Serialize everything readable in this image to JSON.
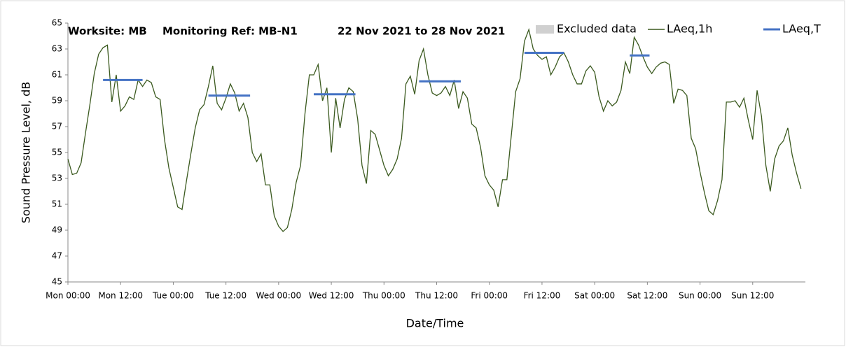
{
  "chart_data": {
    "type": "line",
    "title_parts": [
      "Worksite: MB",
      "Monitoring Ref: MB-N1",
      "22 Nov 2021 to 28 Nov 2021"
    ],
    "xlabel": "Date/Time",
    "ylabel": "Sound Pressure Level, dB",
    "xlim": [
      0,
      168
    ],
    "xticks": [
      {
        "value": 0,
        "label": "Mon 00:00"
      },
      {
        "value": 12,
        "label": "Mon 12:00"
      },
      {
        "value": 24,
        "label": "Tue 00:00"
      },
      {
        "value": 36,
        "label": "Tue 12:00"
      },
      {
        "value": 48,
        "label": "Wed 00:00"
      },
      {
        "value": 60,
        "label": "Wed 12:00"
      },
      {
        "value": 72,
        "label": "Thu 00:00"
      },
      {
        "value": 84,
        "label": "Thu 12:00"
      },
      {
        "value": 96,
        "label": "Fri 00:00"
      },
      {
        "value": 108,
        "label": "Fri 12:00"
      },
      {
        "value": 120,
        "label": "Sat 00:00"
      },
      {
        "value": 132,
        "label": "Sat 12:00"
      },
      {
        "value": 144,
        "label": "Sun 00:00"
      },
      {
        "value": 156,
        "label": "Sun 12:00"
      }
    ],
    "ylim": [
      45,
      65
    ],
    "yticks": [
      45,
      47,
      49,
      51,
      53,
      55,
      57,
      59,
      61,
      63,
      65
    ],
    "grid": false,
    "excluded": {
      "name": "Excluded data",
      "color": "#d0d0d0"
    },
    "x": [
      0,
      1,
      2,
      3,
      4,
      5,
      6,
      7,
      8,
      9,
      10,
      11,
      12,
      13,
      14,
      15,
      16,
      17,
      18,
      19,
      20,
      21,
      22,
      23,
      24,
      25,
      26,
      27,
      28,
      29,
      30,
      31,
      32,
      33,
      34,
      35,
      36,
      37,
      38,
      39,
      40,
      41,
      42,
      43,
      44,
      45,
      46,
      47,
      48,
      49,
      50,
      51,
      52,
      53,
      54,
      55,
      56,
      57,
      58,
      59,
      60,
      61,
      62,
      63,
      64,
      65,
      66,
      67,
      68,
      69,
      70,
      71,
      72,
      73,
      74,
      75,
      76,
      77,
      78,
      79,
      80,
      81,
      82,
      83,
      84,
      85,
      86,
      87,
      88,
      89,
      90,
      91,
      92,
      93,
      94,
      95,
      96,
      97,
      98,
      99,
      100,
      101,
      102,
      103,
      104,
      105,
      106,
      107,
      108,
      109,
      110,
      111,
      112,
      113,
      114,
      115,
      116,
      117,
      118,
      119,
      120,
      121,
      122,
      123,
      124,
      125,
      126,
      127,
      128,
      129,
      130,
      131,
      132,
      133,
      134,
      135,
      136,
      137,
      138,
      139,
      140,
      141,
      142,
      143,
      144,
      145,
      146,
      147,
      148,
      149,
      150,
      151,
      152,
      153,
      154,
      155,
      156,
      157,
      158,
      159,
      160,
      161,
      162,
      163,
      164,
      165,
      166,
      167
    ],
    "series": [
      {
        "name": "LAeq,1h",
        "color": "#3b5a1f",
        "values": [
          54.5,
          53.3,
          53.4,
          54.2,
          56.5,
          58.7,
          61.1,
          62.6,
          63.1,
          63.3,
          58.9,
          61.0,
          58.2,
          58.6,
          59.3,
          59.1,
          60.6,
          60.1,
          60.6,
          60.4,
          59.3,
          59.1,
          56.0,
          53.8,
          52.3,
          50.8,
          50.6,
          52.8,
          54.9,
          56.9,
          58.3,
          58.7,
          60.1,
          61.7,
          58.8,
          58.3,
          59.2,
          60.3,
          59.6,
          58.2,
          58.8,
          57.7,
          55.0,
          54.3,
          54.9,
          52.5,
          52.5,
          50.1,
          49.3,
          48.9,
          49.2,
          50.6,
          52.7,
          54.0,
          58.0,
          61.0,
          61.0,
          61.8,
          59.0,
          60.0,
          55.0,
          59.2,
          56.9,
          59.1,
          60.0,
          59.7,
          57.6,
          54.0,
          52.6,
          56.7,
          56.4,
          55.2,
          54.0,
          53.2,
          53.7,
          54.5,
          56.1,
          60.3,
          60.9,
          59.5,
          62.1,
          63.0,
          61.0,
          59.6,
          59.4,
          59.6,
          60.1,
          59.4,
          60.6,
          58.4,
          59.7,
          59.2,
          57.2,
          56.9,
          55.4,
          53.2,
          52.5,
          52.1,
          50.8,
          52.9,
          52.9,
          56.3,
          59.7,
          60.7,
          63.6,
          64.5,
          63.0,
          62.5,
          62.2,
          62.4,
          61.0,
          61.6,
          62.4,
          62.7,
          62.0,
          61.0,
          60.3,
          60.3,
          61.3,
          61.7,
          61.2,
          59.3,
          58.2,
          59.0,
          58.6,
          58.9,
          59.8,
          62.0,
          61.1,
          63.9,
          63.3,
          62.4,
          61.6,
          61.1,
          61.6,
          61.9,
          62.0,
          61.8,
          58.8,
          59.9,
          59.8,
          59.4,
          56.1,
          55.3,
          53.5,
          51.9,
          50.5,
          50.2,
          51.3,
          52.9,
          58.9,
          58.9,
          59.0,
          58.5,
          59.2,
          57.5,
          56.0,
          59.8,
          57.8,
          54.0,
          52.0,
          54.5,
          55.5,
          55.9,
          56.9,
          54.8,
          53.4,
          52.2
        ]
      },
      {
        "name": "LAeq,T",
        "color": "#4472c4",
        "periods": [
          {
            "start": 8,
            "end": 17,
            "value": 60.6
          },
          {
            "start": 32,
            "end": 41.5,
            "value": 59.4
          },
          {
            "start": 56,
            "end": 65.5,
            "value": 59.5
          },
          {
            "start": 80,
            "end": 89.5,
            "value": 60.5
          },
          {
            "start": 104,
            "end": 113,
            "value": 62.7
          },
          {
            "start": 128,
            "end": 132.5,
            "value": 62.5
          }
        ]
      }
    ]
  }
}
